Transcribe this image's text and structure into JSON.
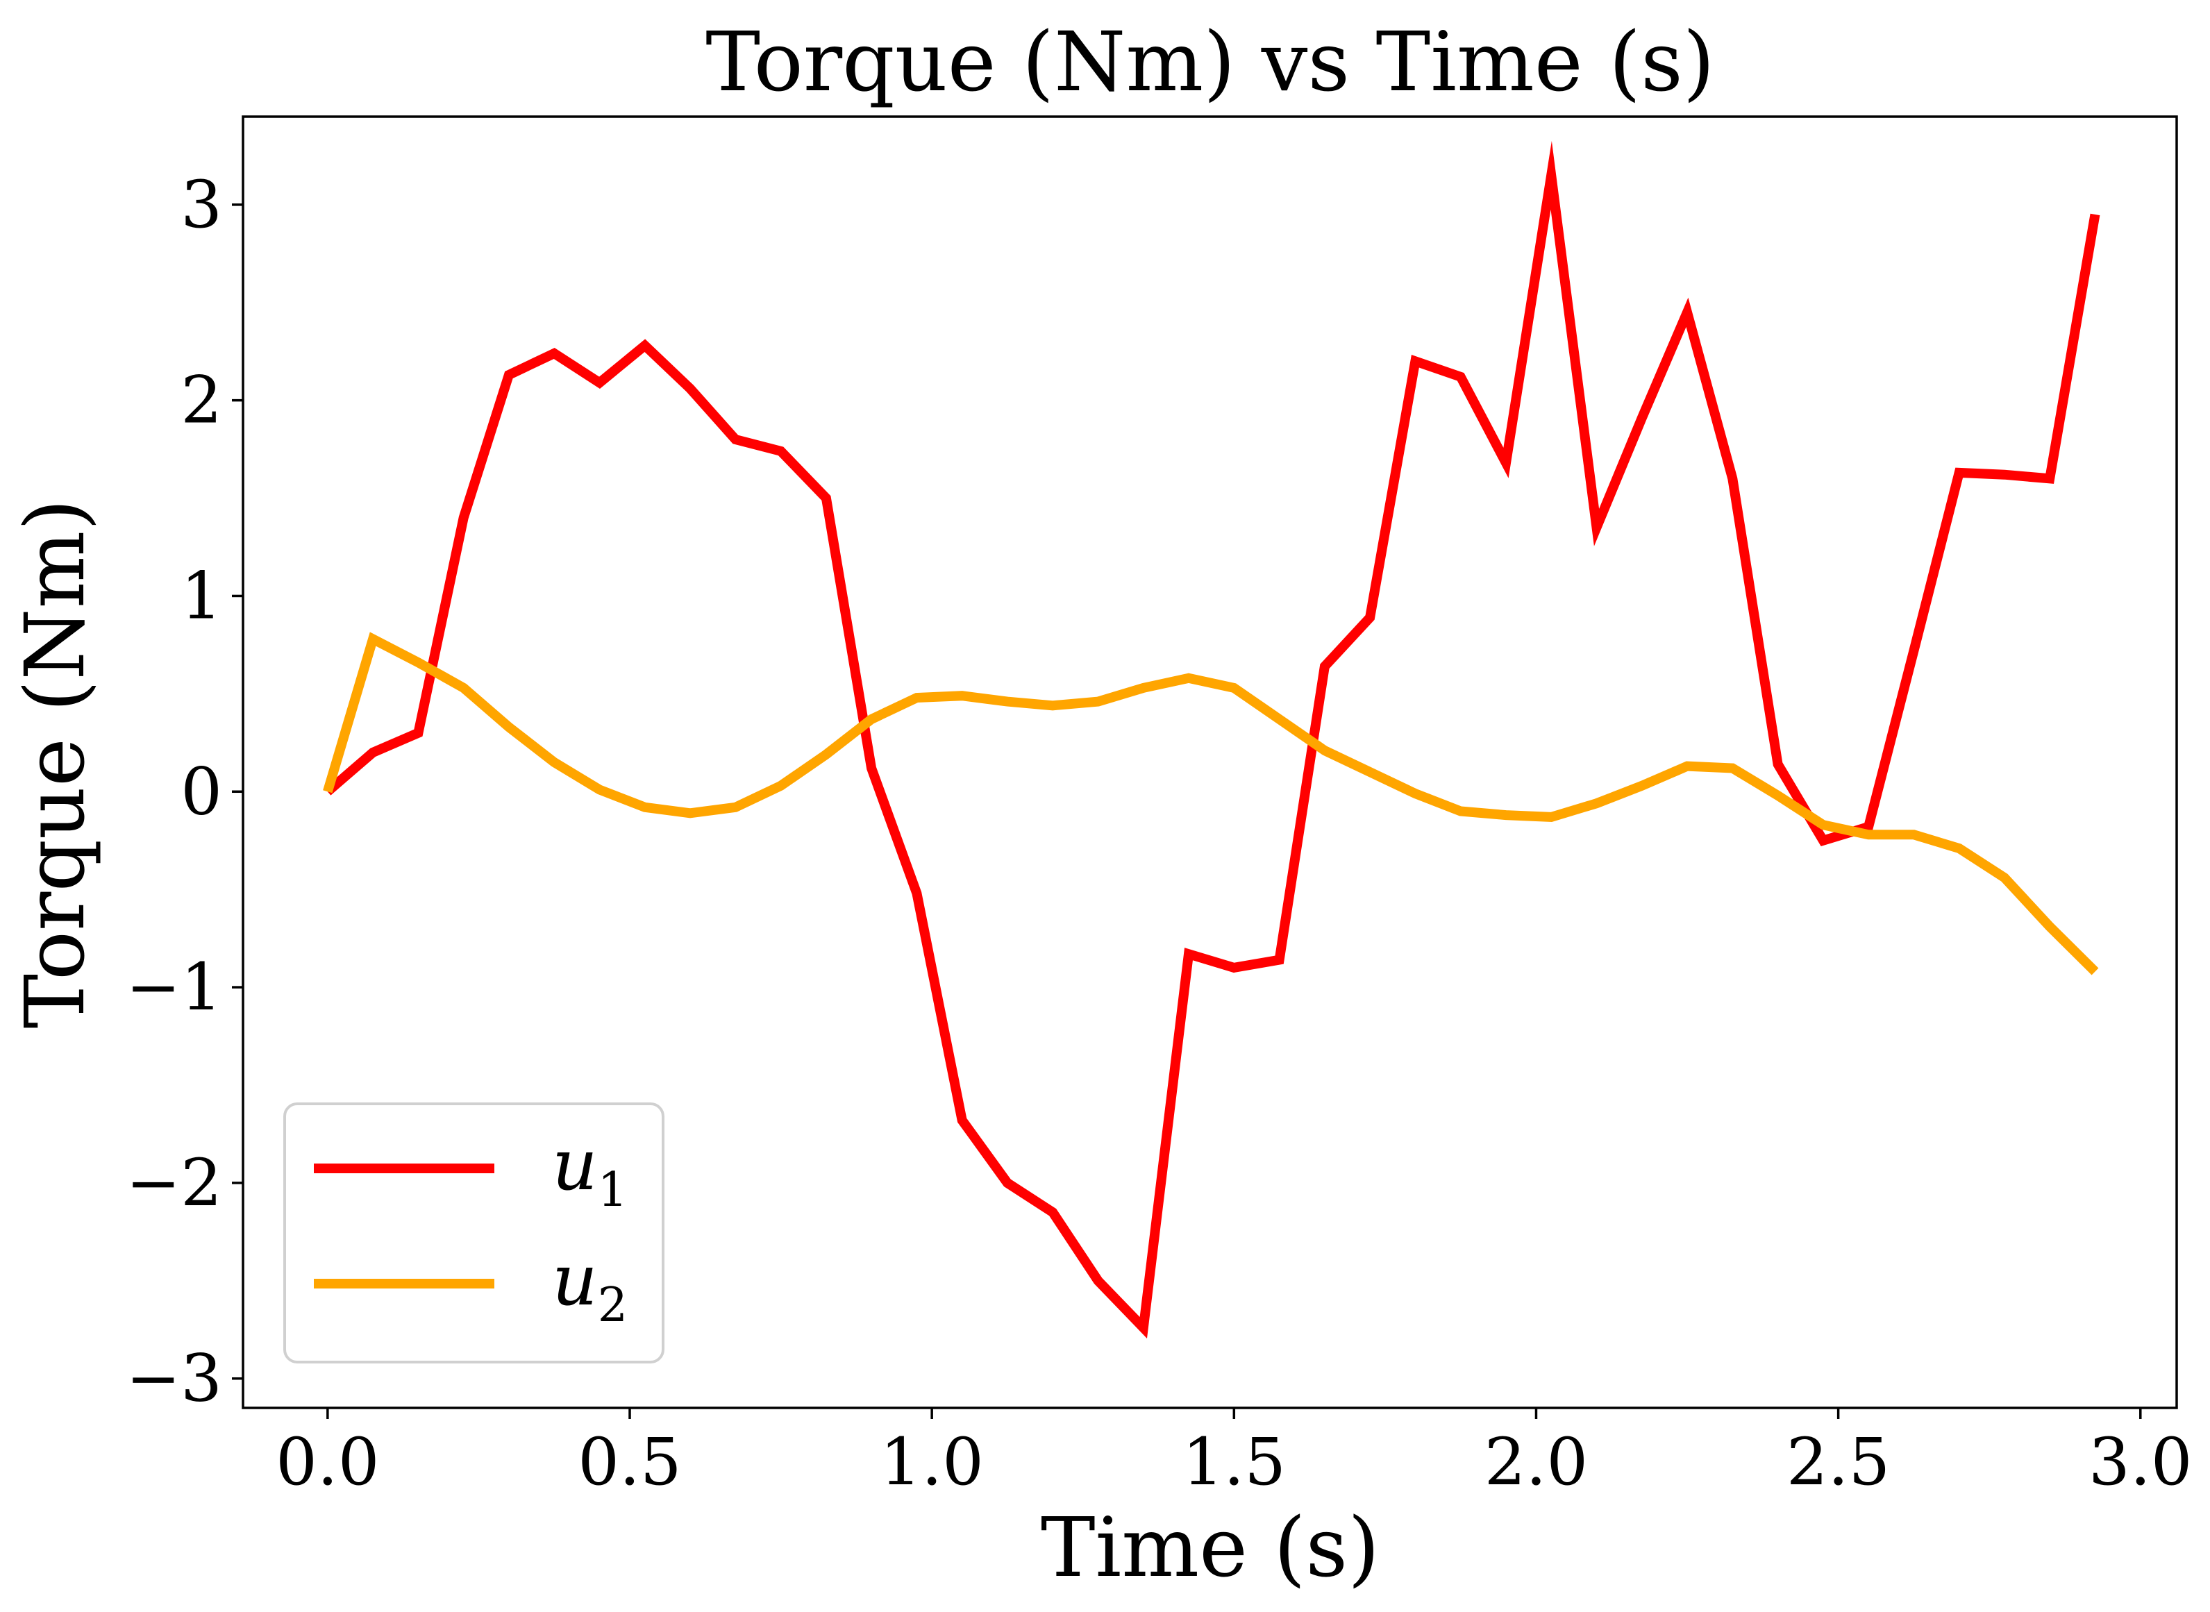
{
  "chart_data": {
    "type": "line",
    "title": "Torque (Nm) vs Time (s)",
    "xlabel": "Time (s)",
    "ylabel": "Torque (Nm)",
    "xlim": [
      -0.14,
      3.06
    ],
    "ylim": [
      -3.15,
      3.45
    ],
    "xticks": [
      0.0,
      0.5,
      1.0,
      1.5,
      2.0,
      2.5,
      3.0
    ],
    "xtick_labels": [
      "0.0",
      "0.5",
      "1.0",
      "1.5",
      "2.0",
      "2.5",
      "3.0"
    ],
    "yticks": [
      -3,
      -2,
      -1,
      0,
      1,
      2,
      3
    ],
    "ytick_labels": [
      "−3",
      "−2",
      "−1",
      "0",
      "1",
      "2",
      "3"
    ],
    "grid": false,
    "legend_position": "lower-left",
    "x": [
      0.0,
      0.075,
      0.15,
      0.225,
      0.3,
      0.375,
      0.45,
      0.525,
      0.6,
      0.675,
      0.75,
      0.825,
      0.9,
      0.975,
      1.05,
      1.125,
      1.2,
      1.275,
      1.35,
      1.425,
      1.5,
      1.575,
      1.65,
      1.725,
      1.8,
      1.875,
      1.95,
      2.025,
      2.1,
      2.175,
      2.25,
      2.325,
      2.4,
      2.475,
      2.55,
      2.625,
      2.7,
      2.775,
      2.85,
      2.925
    ],
    "series": [
      {
        "name": "u",
        "name_sub": "1",
        "color": "#ff0000",
        "values": [
          0.0,
          0.2,
          0.3,
          1.4,
          2.13,
          2.24,
          2.09,
          2.28,
          2.06,
          1.8,
          1.74,
          1.5,
          0.12,
          -0.52,
          -1.68,
          -2.0,
          -2.15,
          -2.5,
          -2.74,
          -0.83,
          -0.9,
          -0.86,
          0.64,
          0.89,
          2.2,
          2.12,
          1.68,
          3.15,
          1.35,
          1.91,
          2.45,
          1.6,
          0.14,
          -0.25,
          -0.18,
          0.72,
          1.63,
          1.62,
          1.6,
          2.95
        ]
      },
      {
        "name": "u",
        "name_sub": "2",
        "color": "#ffa500",
        "values": [
          0.0,
          0.78,
          0.66,
          0.53,
          0.33,
          0.15,
          0.01,
          -0.08,
          -0.11,
          -0.08,
          0.03,
          0.19,
          0.37,
          0.48,
          0.49,
          0.46,
          0.44,
          0.46,
          0.53,
          0.58,
          0.53,
          0.37,
          0.21,
          0.1,
          -0.01,
          -0.1,
          -0.12,
          -0.13,
          -0.06,
          0.03,
          0.13,
          0.12,
          -0.02,
          -0.17,
          -0.22,
          -0.22,
          -0.29,
          -0.44,
          -0.69,
          -0.92
        ]
      }
    ]
  }
}
